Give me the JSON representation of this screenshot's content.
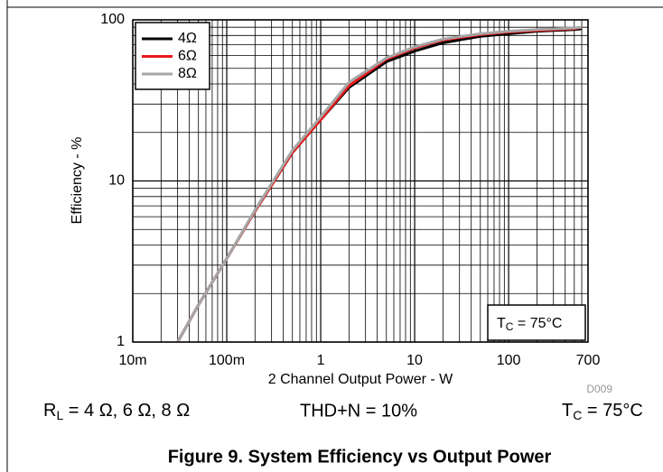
{
  "chart_data": {
    "type": "line",
    "x_label": "2 Channel Output Power - W",
    "y_label": "Efficiency - %",
    "xscale": "log",
    "yscale": "log",
    "xlim": [
      0.01,
      700
    ],
    "ylim": [
      1,
      100
    ],
    "xticks": [
      {
        "value": 0.01,
        "label": "10m"
      },
      {
        "value": 0.1,
        "label": "100m"
      },
      1,
      10,
      100,
      700
    ],
    "yticks": [
      1,
      10,
      100
    ],
    "xminorticks": [
      0.02,
      0.03,
      0.04,
      0.05,
      0.06,
      0.07,
      0.08,
      0.09,
      0.2,
      0.3,
      0.4,
      0.5,
      0.6,
      0.7,
      0.8,
      0.9,
      2,
      3,
      4,
      5,
      6,
      7,
      8,
      9,
      20,
      30,
      40,
      50,
      60,
      70,
      80,
      90,
      200,
      300,
      400,
      500,
      600
    ],
    "yminorticks": [
      2,
      3,
      4,
      5,
      6,
      7,
      8,
      9,
      20,
      30,
      40,
      50,
      60,
      70,
      80,
      90
    ],
    "grid": true,
    "legend": "upper left",
    "x": [
      0.03,
      0.05,
      0.1,
      0.2,
      0.5,
      1,
      2,
      5,
      10,
      20,
      50,
      100,
      200,
      500,
      600
    ],
    "series": [
      {
        "name": "4Ω",
        "color": "#000000",
        "values": [
          1,
          1.7,
          3.3,
          6.5,
          15,
          24,
          38,
          55,
          64,
          72,
          79,
          82,
          85,
          87,
          88
        ]
      },
      {
        "name": "6Ω",
        "color": "#e8191c",
        "values": [
          1,
          1.7,
          3.3,
          6.5,
          15,
          24,
          39,
          57,
          67,
          75,
          81,
          84,
          86,
          88,
          90
        ]
      },
      {
        "name": "8Ω",
        "color": "#a6a6a6",
        "values": [
          1,
          1.7,
          3.3,
          6.6,
          15.5,
          25,
          41,
          58,
          68,
          76,
          82,
          85,
          87,
          89,
          90
        ]
      }
    ],
    "annotation": {
      "base": "T",
      "sub": "C",
      "rest": " = 75°C"
    },
    "figure_id": "D009",
    "conditions": {
      "load": {
        "base": "R",
        "sub": "L",
        "rest": " = 4 Ω, 6 Ω, 8 Ω"
      },
      "thd": "THD+N = 10%",
      "temp": {
        "base": "T",
        "sub": "C",
        "rest": " = 75°C"
      }
    },
    "caption": "Figure 9. System Efficiency vs Output Power"
  }
}
